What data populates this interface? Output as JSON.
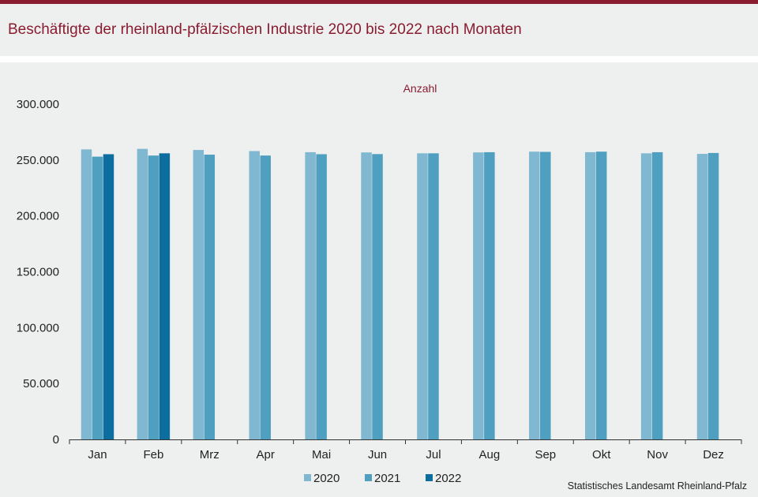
{
  "title": "Beschäftigte der rheinland-pfälzischen Industrie 2020 bis 2022 nach Monaten",
  "source": "Statistisches Landesamt  Rheinland-Pfalz",
  "colors": {
    "s2020": "#7fb8d0",
    "s2021": "#4e9fc0",
    "s2022": "#0c6d9f",
    "brand": "#8a1c30"
  },
  "chart_data": {
    "type": "bar",
    "title": "Beschäftigte der rheinland-pfälzischen Industrie 2020 bis 2022 nach Monaten",
    "ylabel": "Anzahl",
    "xlabel": "",
    "ylim": [
      0,
      300000
    ],
    "yticks": [
      0,
      50000,
      100000,
      150000,
      200000,
      250000,
      300000
    ],
    "ytick_labels": [
      "0",
      "50.000",
      "100.000",
      "150.000",
      "200.000",
      "250.000",
      "300.000"
    ],
    "categories": [
      "Jan",
      "Feb",
      "Mrz",
      "Apr",
      "Mai",
      "Jun",
      "Jul",
      "Aug",
      "Sep",
      "Okt",
      "Nov",
      "Dez"
    ],
    "series": [
      {
        "name": "2020",
        "color": "#7fb8d0",
        "values": [
          259500,
          260000,
          259000,
          258000,
          257000,
          256800,
          256000,
          256800,
          257500,
          257000,
          256000,
          255500
        ]
      },
      {
        "name": "2021",
        "color": "#4e9fc0",
        "values": [
          253000,
          254000,
          254800,
          254000,
          255200,
          255300,
          256000,
          257000,
          257300,
          257500,
          257000,
          256300
        ]
      },
      {
        "name": "2022",
        "color": "#0c6d9f",
        "values": [
          255200,
          256000,
          null,
          null,
          null,
          null,
          null,
          null,
          null,
          null,
          null,
          null
        ]
      }
    ],
    "legend_position": "bottom",
    "grid": false
  }
}
